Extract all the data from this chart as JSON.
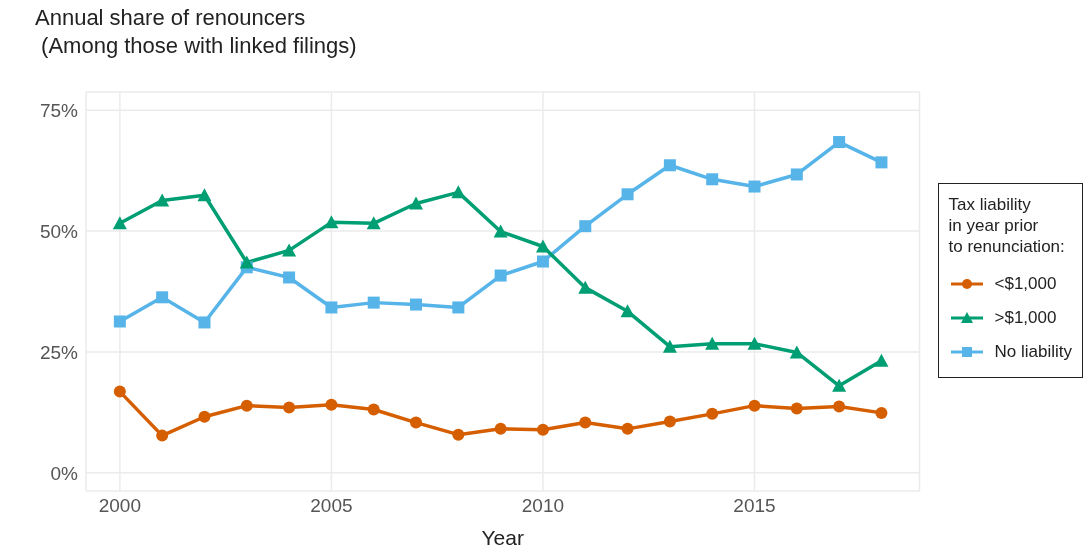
{
  "chart_data": {
    "type": "line",
    "title": "Annual share of renouncers",
    "subtitle": "(Among those with linked filings)",
    "xlabel": "Year",
    "legend_title": "Tax liability\nin year prior\nto renunciation:",
    "x": [
      2000,
      2001,
      2002,
      2003,
      2004,
      2005,
      2006,
      2007,
      2008,
      2009,
      2010,
      2011,
      2012,
      2013,
      2014,
      2015,
      2016,
      2017,
      2018
    ],
    "series": [
      {
        "name": "<$1,000",
        "color": "#d55e00",
        "marker": "circle",
        "values": [
          16.8,
          7.7,
          11.6,
          13.9,
          13.5,
          14.1,
          13.1,
          10.4,
          7.9,
          9.1,
          8.9,
          10.4,
          9.1,
          10.6,
          12.2,
          13.9,
          13.3,
          13.7,
          12.4
        ]
      },
      {
        "name": ">$1,000",
        "color": "#009e73",
        "marker": "triangle",
        "values": [
          51.6,
          56.3,
          57.4,
          43.5,
          46,
          51.8,
          51.6,
          55.7,
          58,
          49.9,
          46.8,
          38.3,
          33.4,
          26.1,
          26.7,
          26.7,
          24.9,
          18,
          23.2
        ]
      },
      {
        "name": "No liability",
        "color": "#56b4e9",
        "marker": "square",
        "values": [
          31.3,
          36.3,
          31.1,
          42.5,
          40.4,
          34.2,
          35.2,
          34.8,
          34.2,
          40.8,
          43.7,
          51,
          57.6,
          63.6,
          60.7,
          59.2,
          61.7,
          68.4,
          64.2
        ]
      }
    ],
    "xlim": [
      1999.2,
      2018.9
    ],
    "xticks": [
      2000,
      2005,
      2010,
      2015
    ],
    "ylim": [
      -3.75,
      78.75
    ],
    "yticks": [
      {
        "value": 0,
        "label": "0%"
      },
      {
        "value": 25,
        "label": "25%"
      },
      {
        "value": 50,
        "label": "50%"
      },
      {
        "value": 75,
        "label": "75%"
      }
    ],
    "grid": true,
    "legend": "right"
  }
}
